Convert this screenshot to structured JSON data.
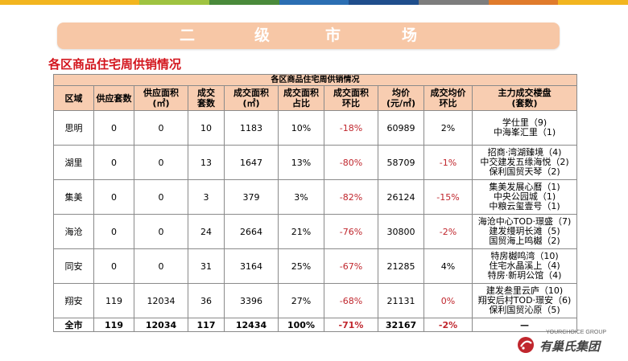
{
  "top_bar_colors": [
    "#f2b51f",
    "#f2b51f",
    "#9fc341",
    "#4a8a3b",
    "#2b6eb3",
    "#1f4e8c",
    "#7d7d7d",
    "#e07b2c",
    "#f2b51f"
  ],
  "banner": {
    "chars": [
      "二",
      "级",
      "市",
      "场"
    ]
  },
  "subtitle": "各区商品住宅周供销情况",
  "table": {
    "caption": "各区商品住宅周供销情况",
    "headers": [
      [
        "区域"
      ],
      [
        "供应套数"
      ],
      [
        "供应面积",
        "(㎡)"
      ],
      [
        "成交",
        "套数"
      ],
      [
        "成交面积",
        "(㎡)"
      ],
      [
        "成交面积",
        "占比"
      ],
      [
        "成交面积",
        "环比"
      ],
      [
        "均价",
        "(元/㎡)"
      ],
      [
        "成交均价",
        "环比"
      ],
      [
        "主力成交楼盘",
        "(套数)"
      ]
    ],
    "rows": [
      {
        "district": "思明",
        "supply_units": "0",
        "supply_area": "0",
        "deal_units": "10",
        "deal_area": "1183",
        "share": "10%",
        "area_mom": "-18%",
        "avg_price": "60989",
        "price_mom": "2%",
        "price_mom_red": false,
        "projects": [
          "学仕里（9)",
          "中海峯汇里（1)"
        ]
      },
      {
        "district": "湖里",
        "supply_units": "0",
        "supply_area": "0",
        "deal_units": "13",
        "deal_area": "1647",
        "share": "13%",
        "area_mom": "-80%",
        "avg_price": "58709",
        "price_mom": "-1%",
        "price_mom_red": true,
        "projects": [
          "招商·湾湖臻境（4)",
          "中交建发五缘海悦（2)",
          "保利国贸天琴（2)"
        ]
      },
      {
        "district": "集美",
        "supply_units": "0",
        "supply_area": "0",
        "deal_units": "3",
        "deal_area": "379",
        "share": "3%",
        "area_mom": "-82%",
        "avg_price": "26124",
        "price_mom": "-15%",
        "price_mom_red": true,
        "projects": [
          "集美发展心曆（1)",
          "中央公园城（1)",
          "中粮云玺壹号（1)"
        ]
      },
      {
        "district": "海沧",
        "supply_units": "0",
        "supply_area": "0",
        "deal_units": "24",
        "deal_area": "2664",
        "share": "21%",
        "area_mom": "-76%",
        "avg_price": "30800",
        "price_mom": "-2%",
        "price_mom_red": true,
        "projects": [
          "海沧中心TOD·璟盛（7)",
          "建发缦玥长滩（5)",
          "国贸海上鸣樾（2)"
        ]
      },
      {
        "district": "同安",
        "supply_units": "0",
        "supply_area": "0",
        "deal_units": "31",
        "deal_area": "3164",
        "share": "25%",
        "area_mom": "-67%",
        "avg_price": "21285",
        "price_mom": "4%",
        "price_mom_red": false,
        "projects": [
          "特房樾鸣湾（10)",
          "住宅水晶溪上（4)",
          "特房·新玥公馆（4)"
        ]
      },
      {
        "district": "翔安",
        "supply_units": "119",
        "supply_area": "12034",
        "deal_units": "36",
        "deal_area": "3396",
        "share": "27%",
        "area_mom": "-68%",
        "avg_price": "21131",
        "price_mom": "0%",
        "price_mom_red": true,
        "projects": [
          "建发叁里云庐（10)",
          "翔安后村TOD·璟安（6)",
          "保利国贸沁原（5)"
        ]
      }
    ],
    "total": {
      "district": "全市",
      "supply_units": "119",
      "supply_area": "12034",
      "deal_units": "117",
      "deal_area": "12434",
      "share": "100%",
      "area_mom": "-71%",
      "avg_price": "32167",
      "price_mom": "-2%",
      "projects": "—"
    }
  },
  "logo": {
    "en": "YOURCHOICE GROUP",
    "cn": "有巢氏集团"
  }
}
